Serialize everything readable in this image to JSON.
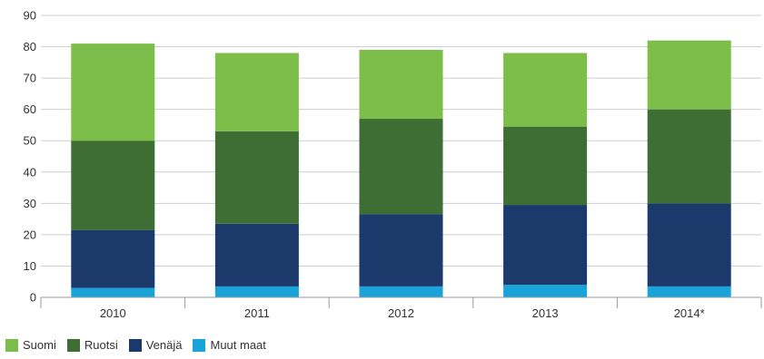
{
  "chart_data": {
    "type": "bar",
    "stacked": true,
    "categories": [
      "2010",
      "2011",
      "2012",
      "2013",
      "2014*"
    ],
    "series": [
      {
        "name": "Muut maat",
        "color": "#1aa3d9",
        "values": [
          3,
          3.5,
          3.5,
          4,
          3.5
        ]
      },
      {
        "name": "Venäjä",
        "color": "#1b3a6b",
        "values": [
          18.5,
          20,
          23,
          25.5,
          26.5
        ]
      },
      {
        "name": "Ruotsi",
        "color": "#3f6e35",
        "values": [
          28.5,
          29.5,
          30.5,
          25,
          30
        ]
      },
      {
        "name": "Suomi",
        "color": "#7dbd4a",
        "values": [
          31,
          25,
          22,
          23.5,
          22
        ]
      }
    ],
    "ylim": [
      0,
      90
    ],
    "yticks": [
      0,
      10,
      20,
      30,
      40,
      50,
      60,
      70,
      80,
      90
    ],
    "grid": true,
    "legend_position": "bottom-left",
    "title": "",
    "xlabel": "",
    "ylabel": ""
  }
}
